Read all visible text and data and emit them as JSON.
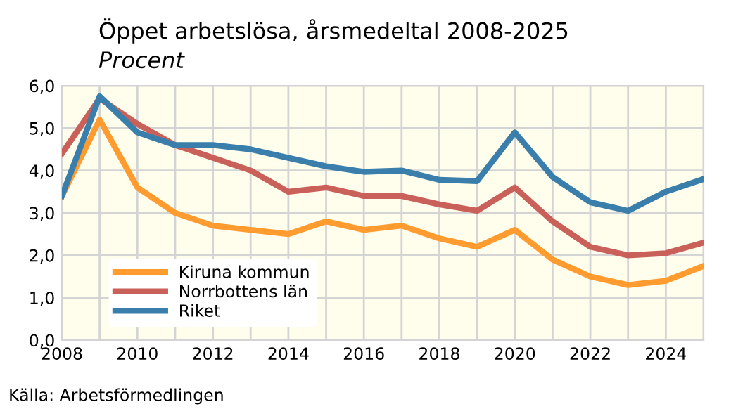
{
  "chart_data": {
    "type": "line",
    "title": "Öppet arbetslösa, årsmedeltal 2008-2025",
    "subtitle": "Procent",
    "x": [
      2008,
      2009,
      2010,
      2011,
      2012,
      2013,
      2014,
      2015,
      2016,
      2017,
      2018,
      2019,
      2020,
      2021,
      2022,
      2023,
      2024,
      2025
    ],
    "series": [
      {
        "name": "Kiruna kommun",
        "color": "#ff9b2f",
        "values": [
          3.4,
          5.2,
          3.6,
          3.0,
          2.7,
          2.6,
          2.5,
          2.8,
          2.6,
          2.7,
          2.4,
          2.2,
          2.6,
          1.9,
          1.5,
          1.3,
          1.4,
          1.75
        ]
      },
      {
        "name": "Norrbottens län",
        "color": "#c9605a",
        "values": [
          4.4,
          5.7,
          5.1,
          4.6,
          4.3,
          4.0,
          3.5,
          3.6,
          3.4,
          3.4,
          3.2,
          3.05,
          3.6,
          2.8,
          2.2,
          2.0,
          2.05,
          2.3
        ]
      },
      {
        "name": "Riket",
        "color": "#3a7fab",
        "values": [
          3.4,
          5.75,
          4.9,
          4.6,
          4.6,
          4.5,
          4.3,
          4.1,
          3.97,
          4.0,
          3.78,
          3.75,
          4.9,
          3.85,
          3.25,
          3.05,
          3.5,
          3.8
        ]
      }
    ],
    "xlim": [
      2008,
      2025
    ],
    "xticks": [
      2008,
      {
        "value": 2009,
        "label": null
      },
      2010,
      {
        "value": 2011,
        "label": null
      },
      2012,
      {
        "value": 2013,
        "label": null
      },
      2014,
      {
        "value": 2015,
        "label": null
      },
      2016,
      {
        "value": 2017,
        "label": null
      },
      2018,
      {
        "value": 2019,
        "label": null
      },
      2020,
      {
        "value": 2021,
        "label": null
      },
      2022,
      {
        "value": 2023,
        "label": null
      },
      2024,
      {
        "value": 2025,
        "label": null
      }
    ],
    "ylim": [
      0,
      6
    ],
    "yticks": [
      {
        "value": 0,
        "label": "0,0"
      },
      {
        "value": 1,
        "label": "1,0"
      },
      {
        "value": 2,
        "label": "2,0"
      },
      {
        "value": 3,
        "label": "3,0"
      },
      {
        "value": 4,
        "label": "4,0"
      },
      {
        "value": 5,
        "label": "5,0"
      },
      {
        "value": 6,
        "label": "6,0"
      }
    ],
    "grid": true,
    "legend": "bottom left",
    "marker": "none",
    "line_style": "solid",
    "annotations": [
      "Källa: Arbetsförmedlingen"
    ]
  }
}
